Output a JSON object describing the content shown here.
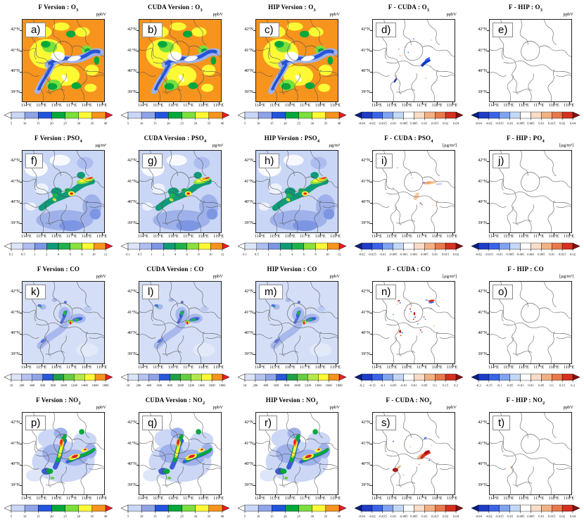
{
  "chart_data": {
    "type": "heatmap",
    "layout": "5 columns x 4 rows of geographic map panels with colorbars",
    "columns": [
      "F Version",
      "CUDA Version",
      "HIP Version",
      "F - CUDA",
      "F - HIP"
    ],
    "rows_species": [
      "O3",
      "PSO4",
      "CO",
      "NO2"
    ],
    "axes": {
      "lat_labels": [
        "42°N",
        "41°N",
        "40°N",
        "39°N"
      ],
      "lon_labels": [
        "114°E",
        "115°E",
        "116°E",
        "117°E",
        "118°E",
        "119°E"
      ],
      "lat_range": [
        38.5,
        42.5
      ],
      "lon_range": [
        113.75,
        119.25
      ]
    },
    "colorbars": {
      "o3": {
        "ticks": [
          "5",
          "10",
          "15",
          "20",
          "25",
          "30",
          "35",
          "40"
        ],
        "colors": [
          "#c9d6f5",
          "#8fa3e8",
          "#2255dd",
          "#00a83c",
          "#7ae03c",
          "#fdf935",
          "#f7941d"
        ],
        "arrow_left": "#ffffff",
        "arrow_right": "#ee1c25"
      },
      "pso4": {
        "ticks": [
          "0.1",
          "0.5",
          "1",
          "2",
          "4",
          "6",
          "8",
          "10",
          "12"
        ],
        "colors": [
          "#dbe4f8",
          "#aebdf0",
          "#7d96e3",
          "#0f9b78",
          "#21b14b",
          "#8ce03c",
          "#fdf935",
          "#f7941d"
        ],
        "arrow_left": "#ffffff",
        "arrow_right": "#ee1c25"
      },
      "co": {
        "ticks": [
          "10",
          "200",
          "400",
          "600",
          "800",
          "1000",
          "1200",
          "1400",
          "1600",
          "1800"
        ],
        "colors": [
          "#dbe4f8",
          "#b4c2f0",
          "#8fa3e8",
          "#2958d8",
          "#1fa048",
          "#66cc44",
          "#b4e84c",
          "#fdf935",
          "#f7941d"
        ],
        "arrow_left": "#ffffff",
        "arrow_right": "#ee1c25"
      },
      "no2": {
        "ticks": [
          "5",
          "10",
          "15",
          "20",
          "25",
          "30",
          "35",
          "40"
        ],
        "colors": [
          "#c9d6f5",
          "#8fa3e8",
          "#2255dd",
          "#00a83c",
          "#7ae03c",
          "#fdf935",
          "#f7941d"
        ],
        "arrow_left": "#ffffff",
        "arrow_right": "#ee1c25"
      },
      "diff_small": {
        "ticks": [
          "-0.04",
          "-0.02",
          "-0.015",
          "-0.01",
          "-0.005",
          "0.005",
          "0.01",
          "0.015",
          "0.02",
          "0.04"
        ],
        "colors": [
          "#1e3cc8",
          "#3a64e8",
          "#7fa3f0",
          "#c3d8f7",
          "#ffffff",
          "#f9ddc8",
          "#f3b183",
          "#e8794a",
          "#d63020"
        ],
        "arrow_left": "#0a1f86",
        "arrow_right": "#8c0f0f"
      },
      "diff_pso4": {
        "ticks": [
          "-0.02",
          "-0.015",
          "-0.01",
          "-0.005",
          "-0.001",
          "0.001",
          "0.005",
          "0.01",
          "0.015",
          "0.02"
        ],
        "colors": [
          "#1e3cc8",
          "#3a64e8",
          "#7fa3f0",
          "#c3d8f7",
          "#ffffff",
          "#f9ddc8",
          "#f3b183",
          "#e8794a",
          "#d63020"
        ],
        "arrow_left": "#0a1f86",
        "arrow_right": "#8c0f0f"
      },
      "diff_co": {
        "ticks": [
          "-0.2",
          "-0.15",
          "-0.1",
          "-0.05",
          "-0.01",
          "0.01",
          "0.05",
          "0.1",
          "0.15",
          "0.2"
        ],
        "colors": [
          "#1e3cc8",
          "#3a64e8",
          "#7fa3f0",
          "#c3d8f7",
          "#ffffff",
          "#f9ddc8",
          "#f3b183",
          "#e8794a",
          "#d63020"
        ],
        "arrow_left": "#0a1f86",
        "arrow_right": "#8c0f0f"
      }
    },
    "panels": [
      {
        "letter": "a)",
        "title": "F Version : O",
        "title_sub": "3",
        "unit": "ppbV",
        "colorbar": "o3",
        "map_kind": "o3"
      },
      {
        "letter": "b)",
        "title": "CUDA Version : O",
        "title_sub": "3",
        "unit": "ppbV",
        "colorbar": "o3",
        "map_kind": "o3"
      },
      {
        "letter": "c)",
        "title": "HIP Version : O",
        "title_sub": "3",
        "unit": "ppbV",
        "colorbar": "o3",
        "map_kind": "o3"
      },
      {
        "letter": "d)",
        "title": "F - CUDA : O",
        "title_sub": "3",
        "unit": "ppbV",
        "colorbar": "diff_small",
        "map_kind": "diff_o3"
      },
      {
        "letter": "e)",
        "title": "F - HIP : O",
        "title_sub": "3",
        "unit": "ppbV",
        "colorbar": "diff_small",
        "map_kind": "empty"
      },
      {
        "letter": "f)",
        "title": "F Version : PSO",
        "title_sub": "4",
        "unit": "µg/m³",
        "colorbar": "pso4",
        "map_kind": "pso4"
      },
      {
        "letter": "g)",
        "title": "CUDA Version : PSO",
        "title_sub": "4",
        "unit": "µg/m³",
        "colorbar": "pso4",
        "map_kind": "pso4"
      },
      {
        "letter": "h)",
        "title": "HIP Version : PSO",
        "title_sub": "4",
        "unit": "µg/m³",
        "colorbar": "pso4",
        "map_kind": "pso4"
      },
      {
        "letter": "i)",
        "title": "F - CUDA : PSO",
        "title_sub": "4",
        "unit": "[µg/m³]",
        "colorbar": "diff_pso4",
        "map_kind": "diff_pso4"
      },
      {
        "letter": "j)",
        "title": "F - HIP : PO",
        "title_sub": "4",
        "unit": "[µg/m³]",
        "colorbar": "diff_pso4",
        "map_kind": "empty"
      },
      {
        "letter": "k)",
        "title": "F Version : CO",
        "title_sub": "",
        "unit": "ppbV",
        "colorbar": "co",
        "map_kind": "co"
      },
      {
        "letter": "l)",
        "title": "CUDA Version : CO",
        "title_sub": "",
        "unit": "ppbV",
        "colorbar": "co",
        "map_kind": "co"
      },
      {
        "letter": "m)",
        "title": "HIP Version : CO",
        "title_sub": "",
        "unit": "ppbV",
        "colorbar": "co",
        "map_kind": "co"
      },
      {
        "letter": "n)",
        "title": "F - CUDA : CO",
        "title_sub": "",
        "unit": "[µg/m³]",
        "colorbar": "diff_co",
        "map_kind": "diff_co"
      },
      {
        "letter": "o)",
        "title": "F - HIP : CO",
        "title_sub": "",
        "unit": "[µg/m³]",
        "colorbar": "diff_co",
        "map_kind": "empty"
      },
      {
        "letter": "p)",
        "title": "F Version : NO",
        "title_sub": "2",
        "unit": "ppbV",
        "colorbar": "no2",
        "map_kind": "no2"
      },
      {
        "letter": "q)",
        "title": "CUDA Version : NO",
        "title_sub": "2",
        "unit": "ppbV",
        "colorbar": "no2",
        "map_kind": "no2"
      },
      {
        "letter": "r)",
        "title": "HIP Version : NO",
        "title_sub": "2",
        "unit": "ppbV",
        "colorbar": "no2",
        "map_kind": "no2"
      },
      {
        "letter": "s)",
        "title": "F - CUDA : NO",
        "title_sub": "2",
        "unit": "ppbV",
        "colorbar": "diff_small",
        "map_kind": "diff_no2"
      },
      {
        "letter": "t)",
        "title": "F - HIP : NO",
        "title_sub": "2",
        "unit": "ppbV",
        "colorbar": "diff_small",
        "map_kind": "diff_no2_hip"
      }
    ]
  }
}
